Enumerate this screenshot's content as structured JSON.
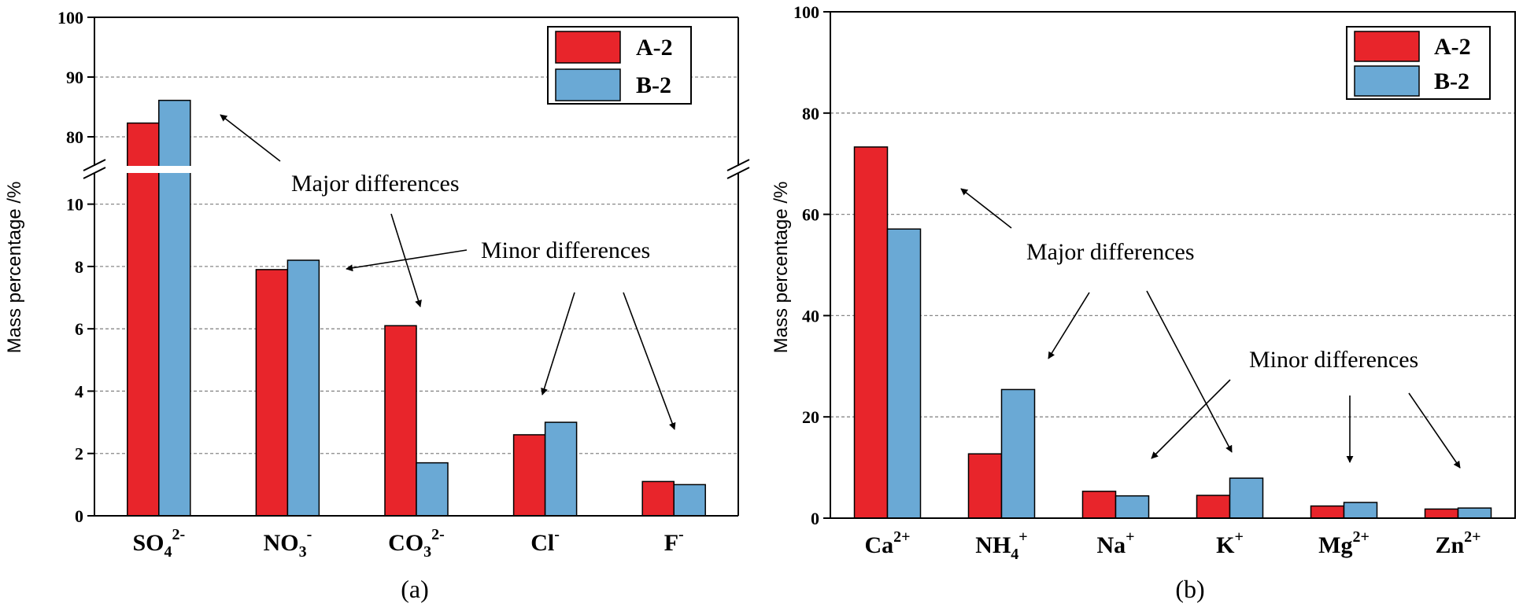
{
  "colors": {
    "A-2": "#e8252b",
    "B-2": "#6aa9d5"
  },
  "chart_data": [
    {
      "type": "bar",
      "panel_label": "(a)",
      "ylabel": "Mass percentage /%",
      "categories": [
        {
          "base": "SO",
          "sub": "4",
          "sup": "2-"
        },
        {
          "base": "NO",
          "sub": "3",
          "sup": "-"
        },
        {
          "base": "CO",
          "sub": "3",
          "sup": "2-"
        },
        {
          "base": "Cl",
          "sub": "",
          "sup": "-"
        },
        {
          "base": "F",
          "sub": "",
          "sup": "-"
        }
      ],
      "series": [
        {
          "name": "A-2",
          "values": [
            82.3,
            7.9,
            6.1,
            2.6,
            1.1
          ]
        },
        {
          "name": "B-2",
          "values": [
            86.1,
            8.2,
            1.7,
            3.0,
            1.0
          ]
        }
      ],
      "y_broken": true,
      "ylim_lower": [
        0,
        11
      ],
      "ylim_upper": [
        75,
        100
      ],
      "yticks_lower": [
        "0",
        "2",
        "4",
        "6",
        "8",
        "10"
      ],
      "yticks_upper": [
        "80",
        "90",
        "100"
      ],
      "grid": "dashed-horizontal",
      "legend_position": "top-right",
      "annotations": [
        "Major differences",
        "Minor differences"
      ]
    },
    {
      "type": "bar",
      "panel_label": "(b)",
      "ylabel": "Mass percentage /%",
      "categories": [
        {
          "base": "Ca",
          "sub": "",
          "sup": "2+"
        },
        {
          "base": "NH",
          "sub": "4",
          "sup": "+"
        },
        {
          "base": "Na",
          "sub": "",
          "sup": "+"
        },
        {
          "base": "K",
          "sub": "",
          "sup": "+"
        },
        {
          "base": "Mg",
          "sub": "",
          "sup": "2+"
        },
        {
          "base": "Zn",
          "sub": "",
          "sup": "2+"
        }
      ],
      "series": [
        {
          "name": "A-2",
          "values": [
            73.3,
            12.7,
            5.3,
            4.5,
            2.4,
            1.8
          ]
        },
        {
          "name": "B-2",
          "values": [
            57.1,
            25.4,
            4.4,
            7.9,
            3.1,
            2.0
          ]
        }
      ],
      "ylim": [
        0,
        100
      ],
      "yticks": [
        "0",
        "20",
        "40",
        "60",
        "80",
        "100"
      ],
      "grid": "dashed-horizontal",
      "legend_position": "top-right",
      "annotations": [
        "Major differences",
        "Minor differences"
      ]
    }
  ]
}
